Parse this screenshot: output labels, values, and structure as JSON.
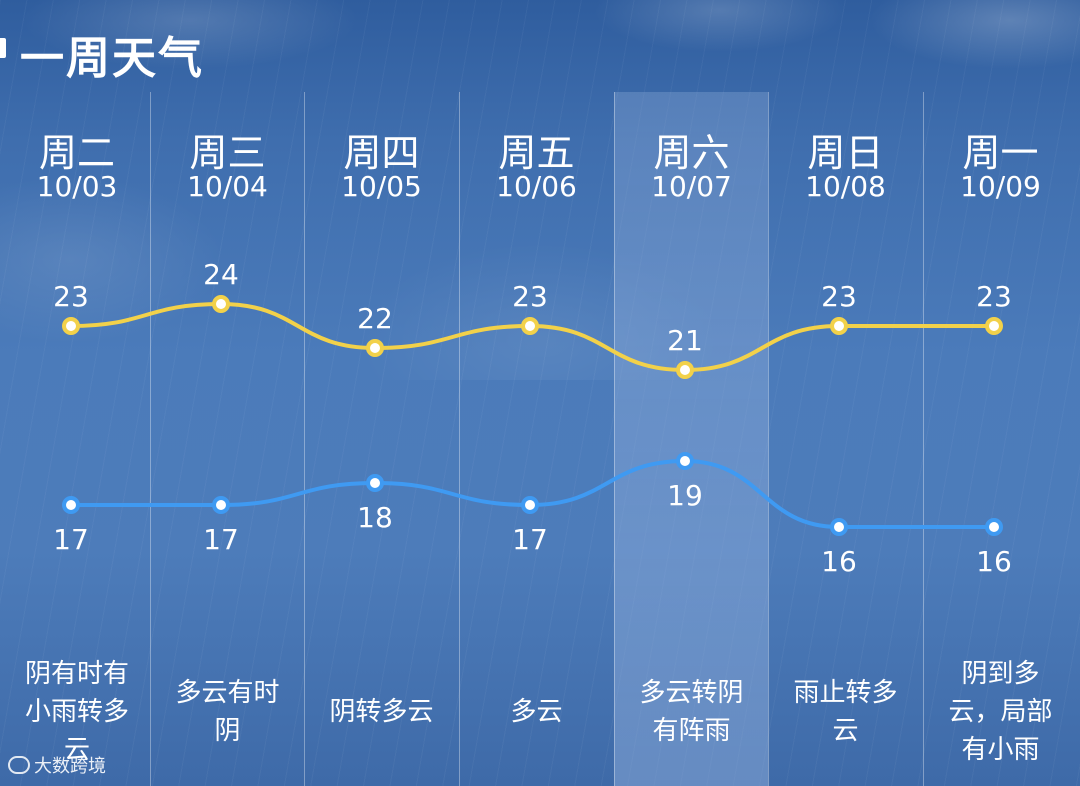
{
  "header": {
    "title": "一周天气"
  },
  "days": [
    {
      "day": "周二",
      "date": "10/03",
      "high": 23,
      "low": 17,
      "desc": [
        "阴有时有",
        "小雨转多",
        "云"
      ]
    },
    {
      "day": "周三",
      "date": "10/04",
      "high": 24,
      "low": 17,
      "desc": [
        "多云有时",
        "阴"
      ]
    },
    {
      "day": "周四",
      "date": "10/05",
      "high": 22,
      "low": 18,
      "desc": [
        "阴转多云"
      ]
    },
    {
      "day": "周五",
      "date": "10/06",
      "high": 23,
      "low": 17,
      "desc": [
        "多云"
      ]
    },
    {
      "day": "周六",
      "date": "10/07",
      "high": 21,
      "low": 19,
      "desc": [
        "多云转阴",
        "有阵雨"
      ]
    },
    {
      "day": "周日",
      "date": "10/08",
      "high": 23,
      "low": 16,
      "desc": [
        "雨止转多",
        "云"
      ]
    },
    {
      "day": "周一",
      "date": "10/09",
      "high": 23,
      "low": 16,
      "desc": [
        "阴到多",
        "云，局部",
        "有小雨"
      ]
    }
  ],
  "chart_data": {
    "type": "line",
    "categories": [
      "周二",
      "周三",
      "周四",
      "周五",
      "周六",
      "周日",
      "周一"
    ],
    "series": [
      {
        "values": [
          23,
          24,
          22,
          23,
          21,
          23,
          23
        ]
      },
      {
        "values": [
          17,
          17,
          18,
          17,
          19,
          16,
          16
        ]
      }
    ]
  },
  "colors": {
    "high": "#f2d14a",
    "low": "#3f9af2",
    "text": "#ffffff"
  },
  "watermark": {
    "text": "大数跨境"
  }
}
